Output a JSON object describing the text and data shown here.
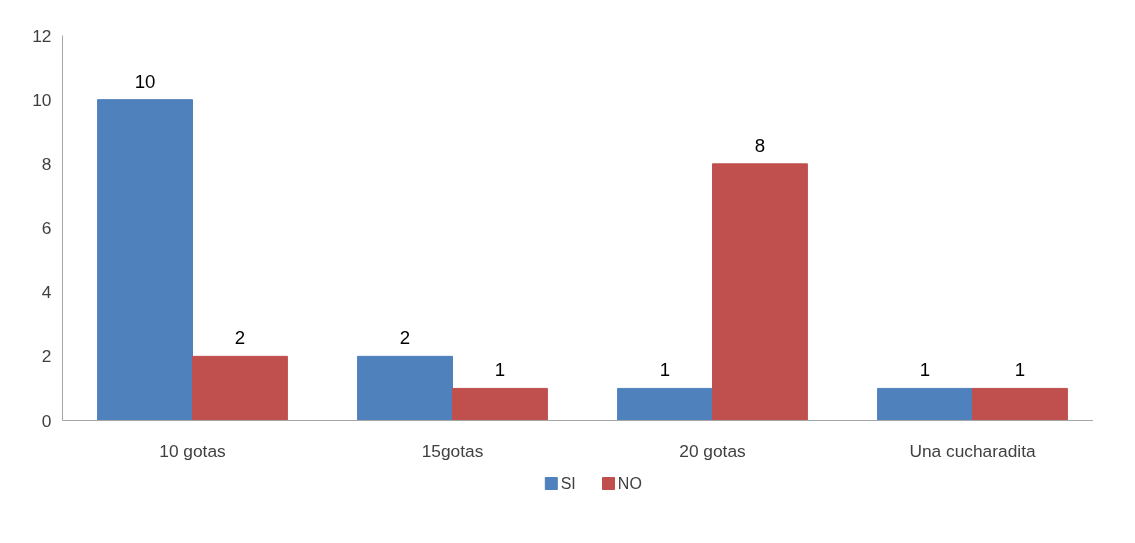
{
  "chart_data": {
    "type": "bar",
    "categories": [
      "10 gotas",
      "15gotas",
      "20 gotas",
      "Una cucharadita"
    ],
    "series": [
      {
        "name": "SI",
        "color": "#4f81bd",
        "values": [
          10,
          2,
          1,
          1
        ]
      },
      {
        "name": "NO",
        "color": "#c0504d",
        "values": [
          2,
          1,
          8,
          1
        ]
      }
    ],
    "ylim": [
      0,
      12
    ],
    "yticks": [
      0,
      2,
      4,
      6,
      8,
      10,
      12
    ],
    "data_labels": true,
    "grid": false,
    "legend": "bottom"
  }
}
